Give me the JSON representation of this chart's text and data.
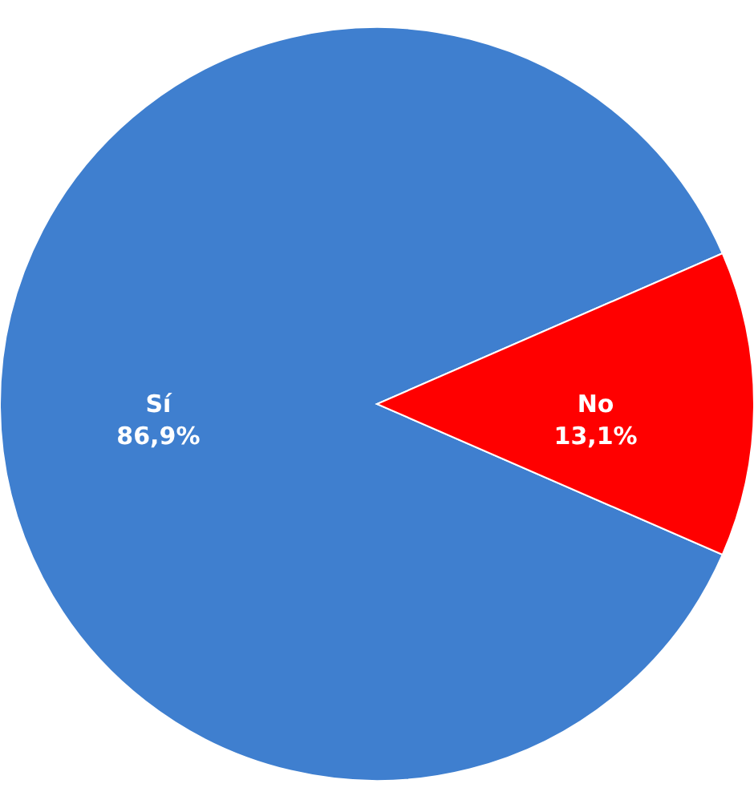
{
  "chart_data": {
    "type": "pie",
    "categories": [
      "Sí",
      "No"
    ],
    "values": [
      86.9,
      13.1
    ],
    "colors": [
      "#3f7fcf",
      "#ff0000"
    ],
    "value_labels": [
      "86,9%",
      "13,1%"
    ]
  }
}
